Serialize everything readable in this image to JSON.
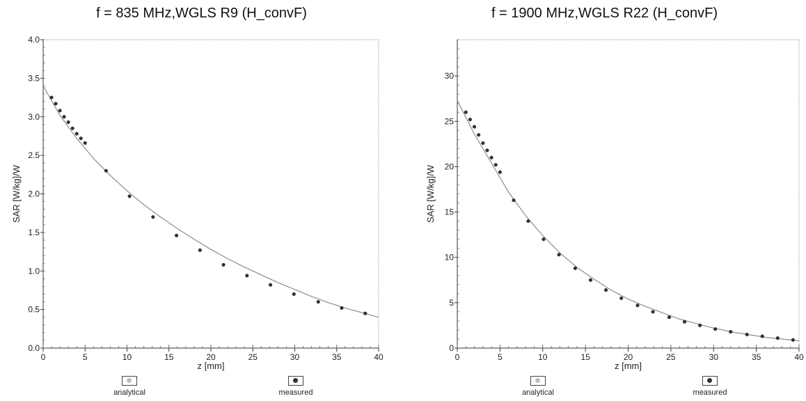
{
  "chart_data": [
    {
      "type": "line",
      "title": "f = 835 MHz,WGLS R9 (H_convF)",
      "xlabel": "z [mm]",
      "ylabel": "SAR [W/kg]/W",
      "xlim": [
        0,
        40
      ],
      "ylim": [
        0,
        4.0
      ],
      "xticks": [
        "0",
        "5",
        "10",
        "15",
        "20",
        "25",
        "30",
        "35",
        "40"
      ],
      "yticks": [
        "0.0",
        "0.5",
        "1.0",
        "1.5",
        "2.0",
        "2.5",
        "3.0",
        "3.5",
        "4.0"
      ],
      "grid": false,
      "legend": "bottom",
      "series": [
        {
          "name": "analytical",
          "style": "line",
          "x": [
            0,
            2,
            4,
            6,
            8,
            10,
            12,
            14,
            16,
            18,
            20,
            22,
            24,
            26,
            28,
            30,
            32,
            34,
            36,
            38,
            40
          ],
          "y": [
            3.4,
            3.02,
            2.72,
            2.46,
            2.24,
            2.04,
            1.86,
            1.7,
            1.55,
            1.41,
            1.28,
            1.16,
            1.05,
            0.95,
            0.85,
            0.76,
            0.67,
            0.59,
            0.52,
            0.46,
            0.4
          ]
        },
        {
          "name": "measured",
          "style": "markers",
          "x": [
            1,
            1.5,
            2,
            2.5,
            3,
            3.5,
            4,
            4.5,
            5,
            7.5,
            10.3,
            13.1,
            15.9,
            18.7,
            21.5,
            24.3,
            27.1,
            29.9,
            32.8,
            35.6,
            38.4
          ],
          "y": [
            3.25,
            3.17,
            3.08,
            3.0,
            2.93,
            2.85,
            2.78,
            2.72,
            2.66,
            2.3,
            1.97,
            1.7,
            1.46,
            1.27,
            1.08,
            0.94,
            0.82,
            0.7,
            0.6,
            0.52,
            0.45
          ]
        }
      ]
    },
    {
      "type": "line",
      "title": "f = 1900 MHz,WGLS R22 (H_convF)",
      "xlabel": "z [mm]",
      "ylabel": "SAR [W/kg]/W",
      "xlim": [
        0,
        40
      ],
      "ylim": [
        0,
        34
      ],
      "xticks": [
        "0",
        "5",
        "10",
        "15",
        "20",
        "25",
        "30",
        "35",
        "40"
      ],
      "yticks": [
        "0",
        "5",
        "10",
        "15",
        "20",
        "25",
        "30"
      ],
      "grid": false,
      "legend": "bottom",
      "series": [
        {
          "name": "analytical",
          "style": "line",
          "x": [
            0,
            2,
            4,
            6,
            8,
            10,
            12,
            14,
            16,
            18,
            20,
            22,
            24,
            26,
            28,
            30,
            32,
            34,
            36,
            38,
            40
          ],
          "y": [
            27.3,
            23.6,
            20.4,
            17.2,
            14.6,
            12.4,
            10.5,
            8.9,
            7.6,
            6.4,
            5.4,
            4.6,
            3.9,
            3.2,
            2.7,
            2.2,
            1.8,
            1.5,
            1.2,
            1.0,
            0.8
          ]
        },
        {
          "name": "measured",
          "style": "markers",
          "x": [
            1,
            1.5,
            2,
            2.5,
            3,
            3.5,
            4,
            4.5,
            5,
            6.6,
            8.3,
            10.1,
            11.9,
            13.8,
            15.6,
            17.4,
            19.2,
            21.1,
            22.9,
            24.8,
            26.6,
            28.4,
            30.2,
            32.0,
            33.9,
            35.7,
            37.5,
            39.3
          ],
          "y": [
            26.0,
            25.2,
            24.4,
            23.5,
            22.6,
            21.8,
            21.0,
            20.2,
            19.4,
            16.3,
            14.0,
            12.0,
            10.3,
            8.8,
            7.5,
            6.4,
            5.5,
            4.7,
            4.0,
            3.4,
            2.9,
            2.5,
            2.1,
            1.8,
            1.5,
            1.3,
            1.1,
            0.9
          ]
        }
      ]
    }
  ],
  "legend_items": [
    {
      "label": "analytical",
      "marker_color": "#bdbdbd"
    },
    {
      "label": "measured",
      "marker_color": "#333333"
    }
  ]
}
